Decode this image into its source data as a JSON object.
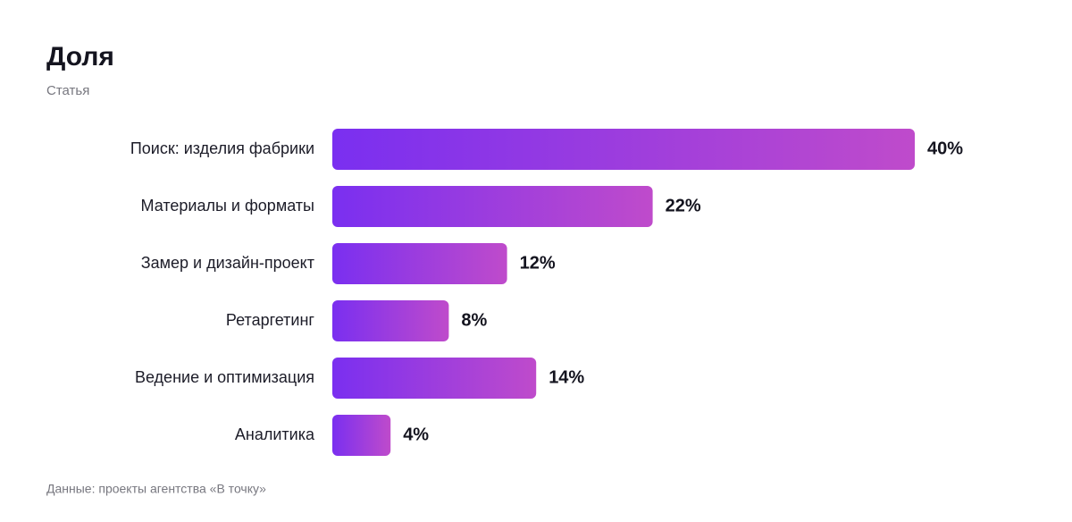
{
  "chart_data": {
    "type": "bar",
    "orientation": "horizontal",
    "title": "Доля",
    "subtitle": "Статья",
    "categories": [
      "Поиск: изделия фабрики",
      "Материалы и форматы",
      "Замер и дизайн-проект",
      "Ретаргетинг",
      "Ведение и оптимизация",
      "Аналитика"
    ],
    "values": [
      40,
      22,
      12,
      8,
      14,
      4
    ],
    "value_labels": [
      "40%",
      "22%",
      "12%",
      "8%",
      "14%",
      "4%"
    ],
    "gradient": [
      "#7a2ff0",
      "#bf4bcb"
    ],
    "source": "Данные: проекты агентства «В точку»"
  }
}
